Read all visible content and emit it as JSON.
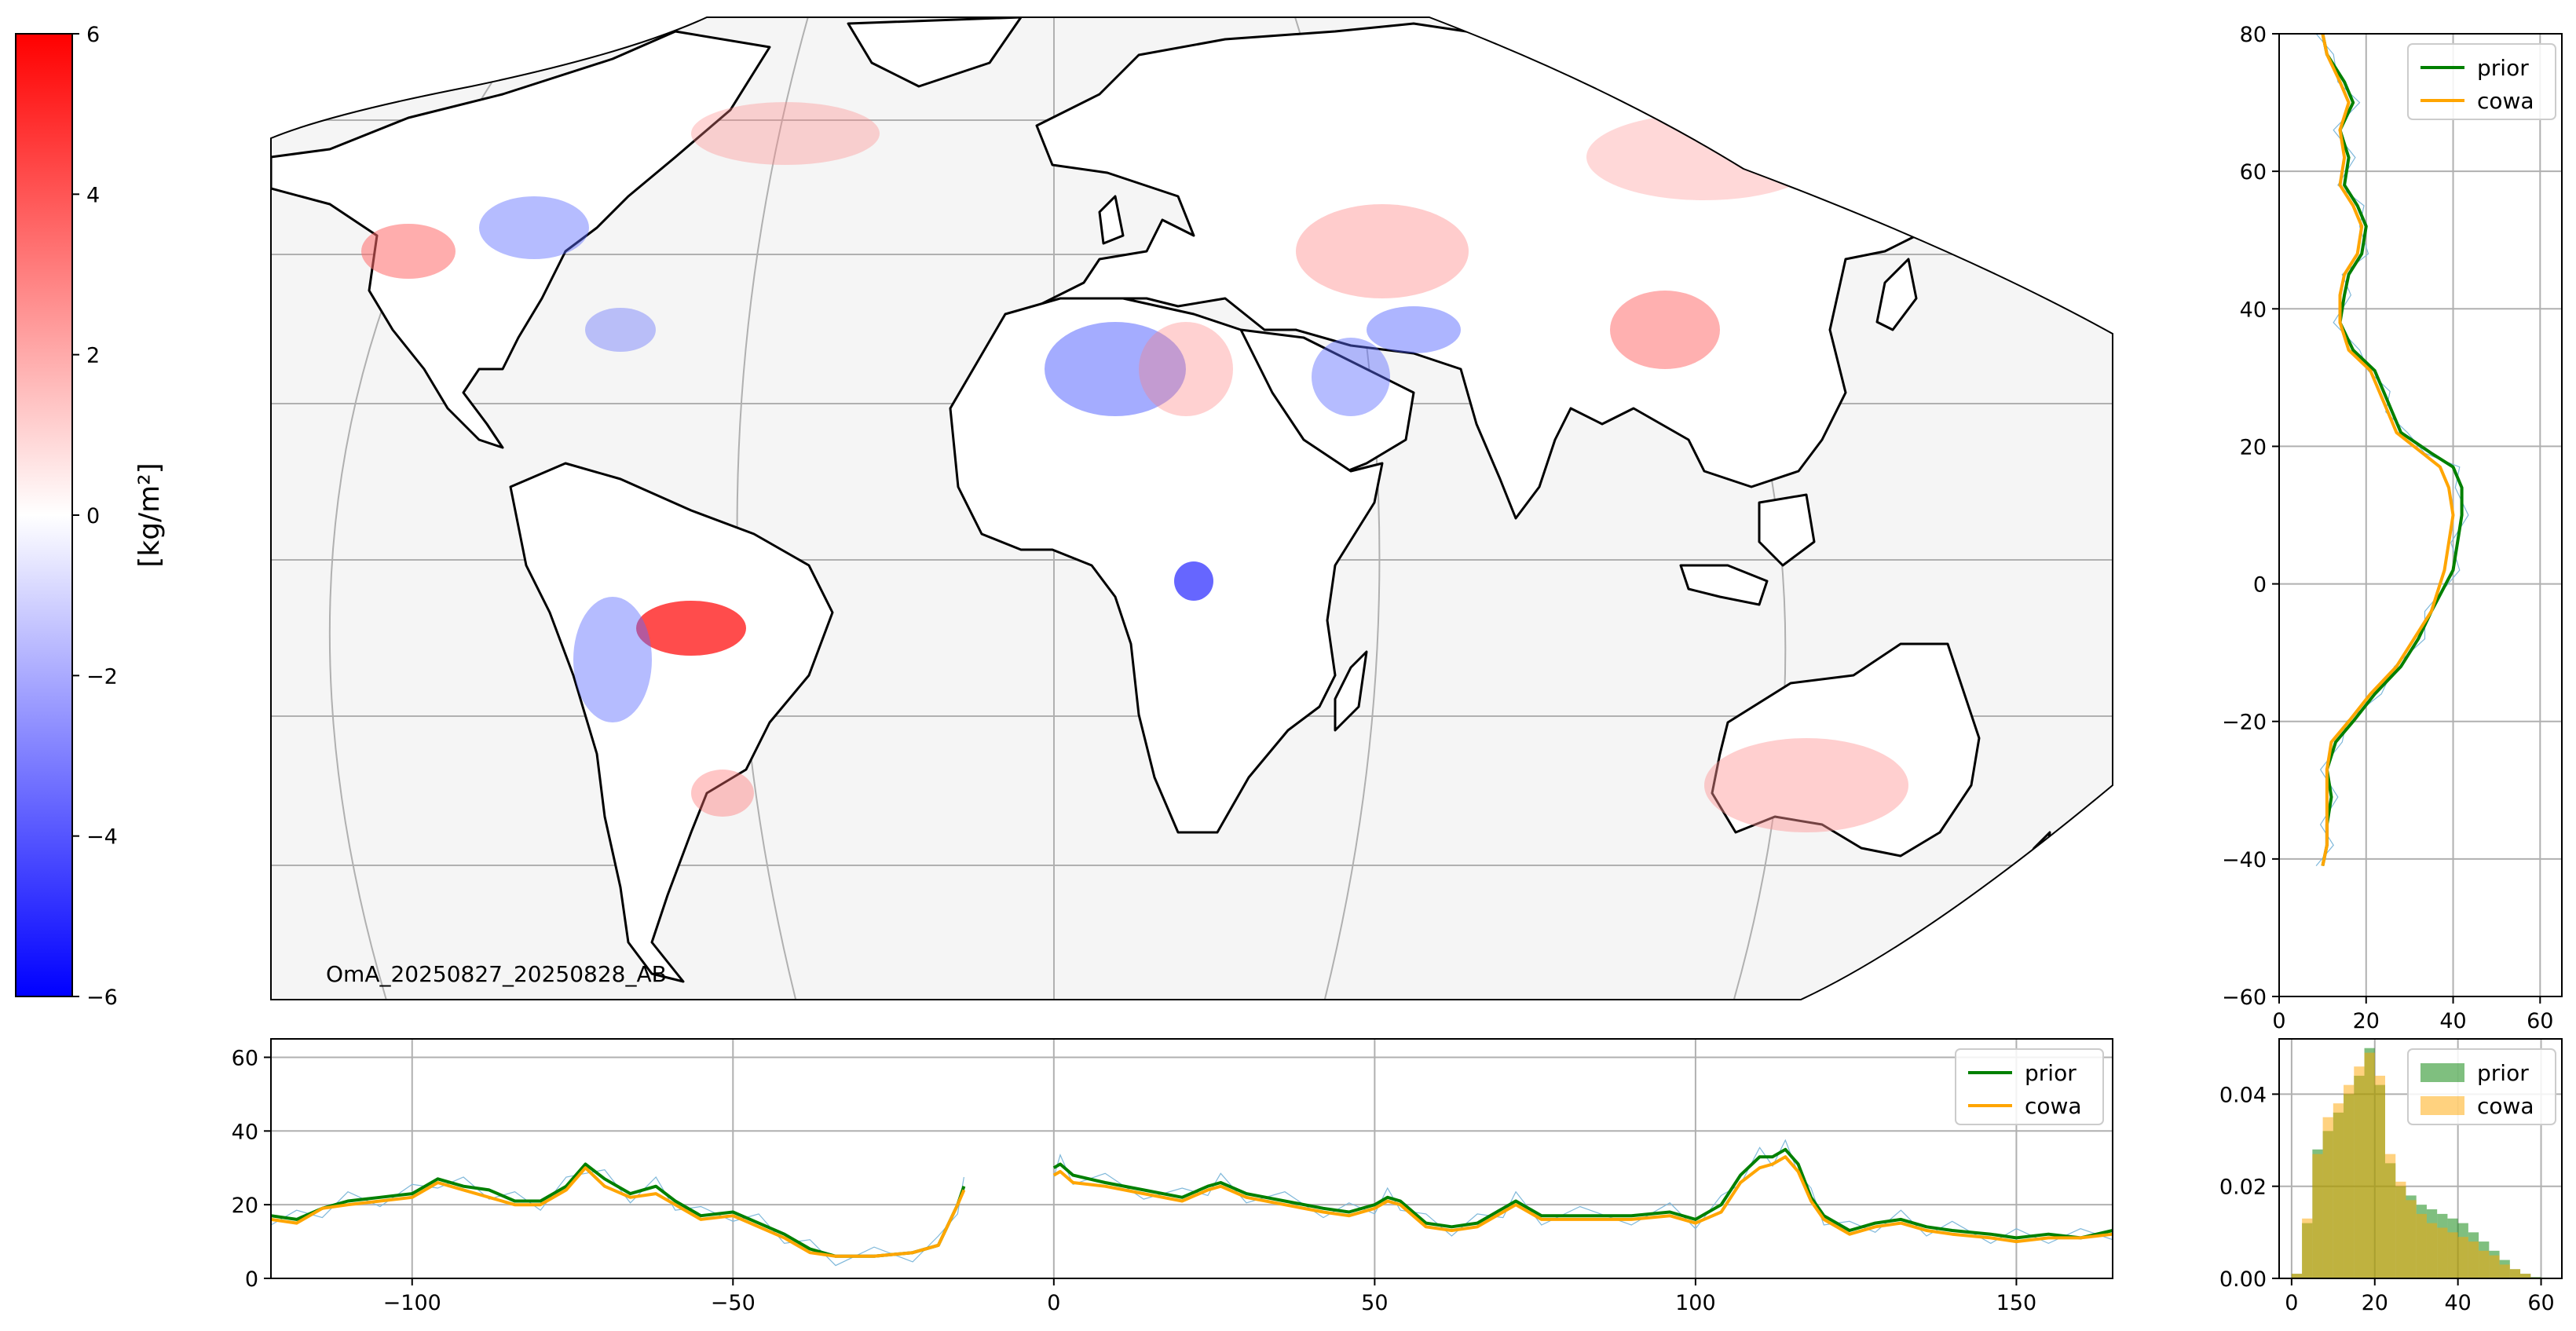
{
  "colorbar": {
    "ticks": [
      6,
      4,
      2,
      0,
      -2,
      -4,
      -6
    ],
    "tick_labels": [
      "6",
      "4",
      "2",
      "0",
      "−2",
      "−4",
      "−6"
    ],
    "label": "[kg/m²]",
    "colormap": "bwr"
  },
  "map": {
    "annotation": "OmA_20250827_20250828_AB",
    "projection": "mollweide",
    "background_color": "#f5f5f5",
    "grid_color": "#b0b0b0",
    "coast_color": "#000000",
    "pos_color": "#ff0000",
    "neg_color": "#0000ff"
  },
  "legend": {
    "prior": "prior",
    "cowa": "cowa"
  },
  "colors": {
    "prior": "#008000",
    "cowa": "#ffa500",
    "raw": "#7fb8da"
  },
  "chart_data": [
    {
      "id": "bottom_lon_mean",
      "type": "line",
      "xlim": [
        -122,
        165
      ],
      "ylim": [
        0,
        65
      ],
      "xticks": [
        -100,
        -50,
        0,
        50,
        100,
        150
      ],
      "xtick_labels": [
        "−100",
        "−50",
        "0",
        "50",
        "100",
        "150"
      ],
      "yticks": [
        0,
        20,
        40,
        60
      ],
      "ytick_labels": [
        "0",
        "20",
        "40",
        "60"
      ],
      "grid": true,
      "legend_position": "upper right",
      "series": [
        {
          "name": "prior",
          "segments": [
            [
              [
                -122,
                17
              ],
              [
                -118,
                16
              ],
              [
                -114,
                19
              ],
              [
                -110,
                21
              ],
              [
                -105,
                22
              ],
              [
                -100,
                23
              ],
              [
                -96,
                27
              ],
              [
                -92,
                25
              ],
              [
                -88,
                24
              ],
              [
                -84,
                21
              ],
              [
                -80,
                21
              ],
              [
                -76,
                25
              ],
              [
                -73,
                31
              ],
              [
                -70,
                27
              ],
              [
                -66,
                23
              ],
              [
                -62,
                25
              ],
              [
                -59,
                21
              ],
              [
                -55,
                17
              ],
              [
                -50,
                18
              ],
              [
                -46,
                15
              ],
              [
                -42,
                12
              ],
              [
                -38,
                8
              ],
              [
                -34,
                6
              ],
              [
                -28,
                6
              ],
              [
                -22,
                7
              ],
              [
                -18,
                9
              ],
              [
                -15,
                20
              ],
              [
                -14,
                25
              ]
            ],
            [
              [
                0,
                30
              ],
              [
                1,
                31
              ],
              [
                3,
                28
              ],
              [
                8,
                26
              ],
              [
                14,
                24
              ],
              [
                20,
                22
              ],
              [
                24,
                25
              ],
              [
                26,
                26
              ],
              [
                30,
                23
              ],
              [
                36,
                21
              ],
              [
                42,
                19
              ],
              [
                46,
                18
              ],
              [
                50,
                20
              ],
              [
                52,
                22
              ],
              [
                54,
                21
              ],
              [
                58,
                15
              ],
              [
                62,
                14
              ],
              [
                66,
                15
              ],
              [
                70,
                19
              ],
              [
                72,
                21
              ],
              [
                76,
                17
              ],
              [
                82,
                17
              ],
              [
                90,
                17
              ],
              [
                96,
                18
              ],
              [
                100,
                16
              ],
              [
                104,
                20
              ],
              [
                107,
                28
              ],
              [
                110,
                33
              ],
              [
                112,
                33
              ],
              [
                114,
                35
              ],
              [
                116,
                31
              ],
              [
                118,
                22
              ],
              [
                120,
                17
              ],
              [
                124,
                13
              ],
              [
                128,
                15
              ],
              [
                132,
                16
              ],
              [
                136,
                14
              ],
              [
                140,
                13
              ],
              [
                146,
                12
              ],
              [
                150,
                11
              ],
              [
                155,
                12
              ],
              [
                160,
                11
              ],
              [
                165,
                13
              ]
            ]
          ]
        },
        {
          "name": "cowa",
          "segments": [
            [
              [
                -122,
                16
              ],
              [
                -118,
                15
              ],
              [
                -114,
                19
              ],
              [
                -110,
                20
              ],
              [
                -105,
                21
              ],
              [
                -100,
                22
              ],
              [
                -96,
                26
              ],
              [
                -92,
                24
              ],
              [
                -88,
                22
              ],
              [
                -84,
                20
              ],
              [
                -80,
                20
              ],
              [
                -76,
                24
              ],
              [
                -73,
                30
              ],
              [
                -70,
                25
              ],
              [
                -66,
                22
              ],
              [
                -62,
                23
              ],
              [
                -59,
                20
              ],
              [
                -55,
                16
              ],
              [
                -50,
                17
              ],
              [
                -46,
                14
              ],
              [
                -42,
                11
              ],
              [
                -38,
                7
              ],
              [
                -34,
                6
              ],
              [
                -28,
                6
              ],
              [
                -22,
                7
              ],
              [
                -18,
                9
              ],
              [
                -15,
                20
              ],
              [
                -14,
                24
              ]
            ],
            [
              [
                0,
                28
              ],
              [
                1,
                29
              ],
              [
                3,
                26
              ],
              [
                8,
                25
              ],
              [
                14,
                23
              ],
              [
                20,
                21
              ],
              [
                24,
                24
              ],
              [
                26,
                25
              ],
              [
                30,
                22
              ],
              [
                36,
                20
              ],
              [
                42,
                18
              ],
              [
                46,
                17
              ],
              [
                50,
                19
              ],
              [
                52,
                21
              ],
              [
                54,
                20
              ],
              [
                58,
                14
              ],
              [
                62,
                13
              ],
              [
                66,
                14
              ],
              [
                70,
                18
              ],
              [
                72,
                20
              ],
              [
                76,
                16
              ],
              [
                82,
                16
              ],
              [
                90,
                16
              ],
              [
                96,
                17
              ],
              [
                100,
                15
              ],
              [
                104,
                18
              ],
              [
                107,
                26
              ],
              [
                110,
                30
              ],
              [
                112,
                31
              ],
              [
                114,
                33
              ],
              [
                116,
                29
              ],
              [
                118,
                21
              ],
              [
                120,
                16
              ],
              [
                124,
                12
              ],
              [
                128,
                14
              ],
              [
                132,
                15
              ],
              [
                136,
                13
              ],
              [
                140,
                12
              ],
              [
                146,
                11
              ],
              [
                150,
                10
              ],
              [
                155,
                11
              ],
              [
                160,
                11
              ],
              [
                165,
                12
              ]
            ]
          ]
        }
      ]
    },
    {
      "id": "right_lat_mean",
      "type": "line",
      "xlim": [
        0,
        65
      ],
      "ylim": [
        -60,
        80
      ],
      "xticks": [
        0,
        20,
        40,
        60
      ],
      "xtick_labels": [
        "0",
        "20",
        "40",
        "60"
      ],
      "yticks": [
        80,
        60,
        40,
        20,
        0,
        -20,
        -40,
        -60
      ],
      "ytick_labels": [
        "80",
        "60",
        "40",
        "20",
        "0",
        "−20",
        "−40",
        "−60"
      ],
      "grid": true,
      "legend_position": "upper right",
      "series": [
        {
          "name": "prior",
          "points": [
            [
              10,
              80
            ],
            [
              11,
              77
            ],
            [
              15,
              73
            ],
            [
              17,
              70
            ],
            [
              14,
              66
            ],
            [
              16,
              62
            ],
            [
              15,
              58
            ],
            [
              18,
              55
            ],
            [
              20,
              52
            ],
            [
              19,
              48
            ],
            [
              16,
              45
            ],
            [
              15,
              42
            ],
            [
              14,
              38
            ],
            [
              17,
              34
            ],
            [
              22,
              31
            ],
            [
              24,
              28
            ],
            [
              26,
              25
            ],
            [
              28,
              22
            ],
            [
              35,
              19
            ],
            [
              40,
              17
            ],
            [
              42,
              14
            ],
            [
              42,
              10
            ],
            [
              41,
              6
            ],
            [
              40,
              2
            ],
            [
              35,
              -4
            ],
            [
              32,
              -8
            ],
            [
              28,
              -12
            ],
            [
              22,
              -16
            ],
            [
              17,
              -20
            ],
            [
              13,
              -23
            ],
            [
              11,
              -27
            ],
            [
              12,
              -31
            ],
            [
              11,
              -35
            ],
            [
              11,
              -38
            ],
            [
              10,
              -41
            ]
          ]
        },
        {
          "name": "cowa",
          "points": [
            [
              10,
              80
            ],
            [
              11,
              77
            ],
            [
              14,
              73
            ],
            [
              16,
              70
            ],
            [
              14,
              66
            ],
            [
              15,
              62
            ],
            [
              14,
              58
            ],
            [
              17,
              55
            ],
            [
              19,
              52
            ],
            [
              18,
              48
            ],
            [
              15,
              45
            ],
            [
              14,
              42
            ],
            [
              14,
              38
            ],
            [
              16,
              34
            ],
            [
              21,
              31
            ],
            [
              23,
              28
            ],
            [
              25,
              25
            ],
            [
              27,
              22
            ],
            [
              33,
              19
            ],
            [
              37,
              17
            ],
            [
              39,
              14
            ],
            [
              40,
              10
            ],
            [
              39,
              6
            ],
            [
              38,
              2
            ],
            [
              35,
              -4
            ],
            [
              31,
              -8
            ],
            [
              27,
              -12
            ],
            [
              21,
              -16
            ],
            [
              16,
              -20
            ],
            [
              12,
              -23
            ],
            [
              11,
              -27
            ],
            [
              11,
              -31
            ],
            [
              11,
              -35
            ],
            [
              11,
              -38
            ],
            [
              10,
              -41
            ]
          ]
        }
      ]
    },
    {
      "id": "histogram",
      "type": "bar",
      "xlim": [
        -3,
        65
      ],
      "ylim": [
        0,
        0.052
      ],
      "xticks": [
        0,
        20,
        40,
        60
      ],
      "xtick_labels": [
        "0",
        "20",
        "40",
        "60"
      ],
      "yticks": [
        0.0,
        0.02,
        0.04
      ],
      "ytick_labels": [
        "0.00",
        "0.02",
        "0.04"
      ],
      "grid": true,
      "legend_position": "upper right",
      "bin_width": 2.5,
      "bin_starts": [
        0,
        2.5,
        5,
        7.5,
        10,
        12.5,
        15,
        17.5,
        20,
        22.5,
        25,
        27.5,
        30,
        32.5,
        35,
        37.5,
        40,
        42.5,
        45,
        47.5,
        50,
        52.5,
        55,
        57.5
      ],
      "series": [
        {
          "name": "prior",
          "values": [
            0.001,
            0.012,
            0.028,
            0.032,
            0.036,
            0.04,
            0.044,
            0.05,
            0.042,
            0.025,
            0.02,
            0.018,
            0.016,
            0.015,
            0.014,
            0.013,
            0.012,
            0.01,
            0.008,
            0.006,
            0.004,
            0.002,
            0.001,
            0.0003
          ]
        },
        {
          "name": "cowa",
          "values": [
            0.001,
            0.013,
            0.027,
            0.035,
            0.038,
            0.042,
            0.046,
            0.049,
            0.044,
            0.027,
            0.021,
            0.017,
            0.014,
            0.012,
            0.011,
            0.01,
            0.009,
            0.008,
            0.006,
            0.005,
            0.003,
            0.002,
            0.001,
            0.0002
          ]
        }
      ]
    }
  ]
}
